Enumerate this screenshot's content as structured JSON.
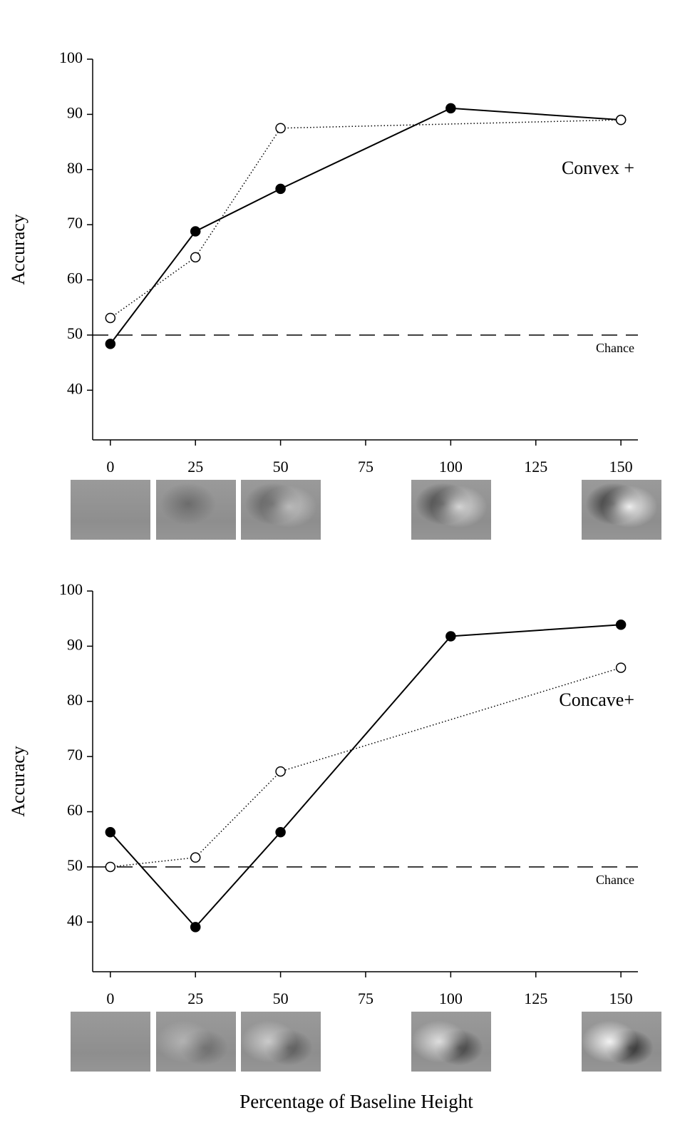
{
  "chart_data": [
    {
      "type": "line",
      "ylabel": "Accuracy",
      "panel_label": "Convex +",
      "xlim": [
        -5.2,
        155
      ],
      "ylim": [
        31,
        100
      ],
      "xticks": [
        0,
        25,
        50,
        75,
        100,
        125,
        150
      ],
      "yticks": [
        40,
        50,
        60,
        70,
        80,
        90,
        100
      ],
      "reference_line": {
        "value": 50,
        "label": "Chance"
      },
      "series": [
        {
          "marker": "filled",
          "linestyle": "solid",
          "color": "#000000",
          "x": [
            0,
            25,
            50,
            100,
            150
          ],
          "values": [
            48.4,
            68.8,
            76.5,
            91.1,
            89
          ]
        },
        {
          "marker": "open",
          "linestyle": "dotted",
          "color": "#000000",
          "x": [
            0,
            25,
            50,
            150
          ],
          "values": [
            53.1,
            64.1,
            87.5,
            89
          ]
        }
      ]
    },
    {
      "type": "line",
      "ylabel": "Accuracy",
      "panel_label": "Concave+",
      "xlabel": "Percentage of Baseline Height",
      "xlim": [
        -5.2,
        155
      ],
      "ylim": [
        31,
        100
      ],
      "xticks": [
        0,
        25,
        50,
        75,
        100,
        125,
        150
      ],
      "yticks": [
        40,
        50,
        60,
        70,
        80,
        90,
        100
      ],
      "reference_line": {
        "value": 50,
        "label": "Chance"
      },
      "series": [
        {
          "marker": "filled",
          "linestyle": "solid",
          "color": "#000000",
          "x": [
            0,
            25,
            50,
            100,
            150
          ],
          "values": [
            56.3,
            39.1,
            56.3,
            91.8,
            93.9
          ]
        },
        {
          "marker": "open",
          "linestyle": "dotted",
          "color": "#000000",
          "x": [
            0,
            25,
            50,
            150
          ],
          "values": [
            50,
            51.7,
            67.3,
            86.1
          ]
        }
      ]
    }
  ]
}
